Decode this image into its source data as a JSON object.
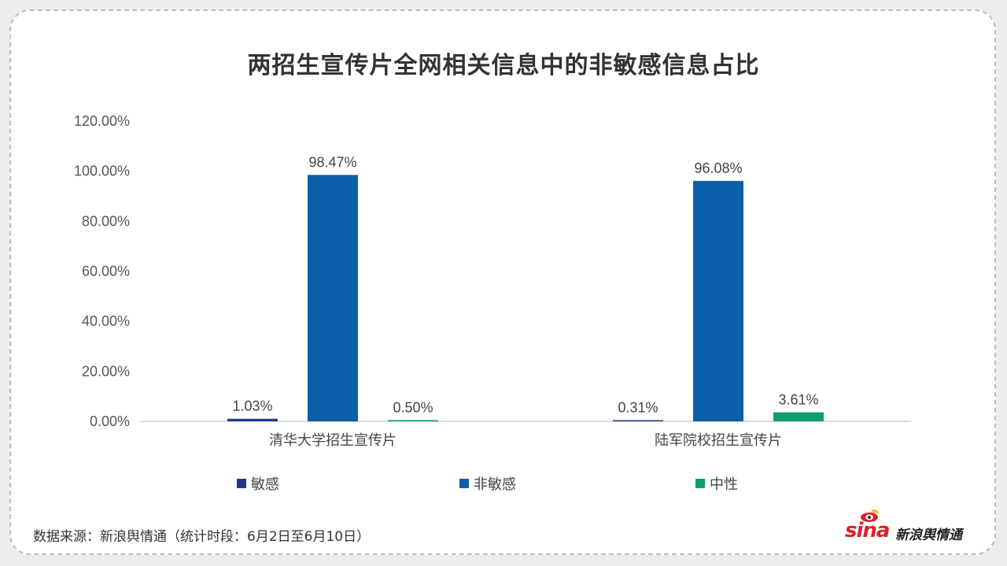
{
  "chart_data": {
    "type": "bar",
    "title": "两招生宣传片全网相关信息中的非敏感信息占比",
    "categories": [
      "清华大学招生宣传片",
      "陆军院校招生宣传片"
    ],
    "series": [
      {
        "name": "敏感",
        "color": "#1f3a8a",
        "values": [
          1.03,
          0.31
        ],
        "labels": [
          "1.03%",
          "0.31%"
        ]
      },
      {
        "name": "非敏感",
        "color": "#0a5fa8",
        "values": [
          98.47,
          96.08
        ],
        "labels": [
          "98.47%",
          "96.08%"
        ]
      },
      {
        "name": "中性",
        "color": "#0f9d72",
        "values": [
          0.5,
          3.61
        ],
        "labels": [
          "0.50%",
          "3.61%"
        ]
      }
    ],
    "ylim": [
      0,
      120
    ],
    "yticks": [
      0,
      20,
      40,
      60,
      80,
      100,
      120
    ],
    "ytick_labels": [
      "0.00%",
      "20.00%",
      "40.00%",
      "60.00%",
      "80.00%",
      "100.00%",
      "120.00%"
    ],
    "grid": false,
    "legend_position": "bottom"
  },
  "footer": {
    "source": "数据来源：新浪舆情通（统计时段：6月2日至6月10日）",
    "logo_sina": "sina",
    "logo_text": "新浪舆情通"
  }
}
